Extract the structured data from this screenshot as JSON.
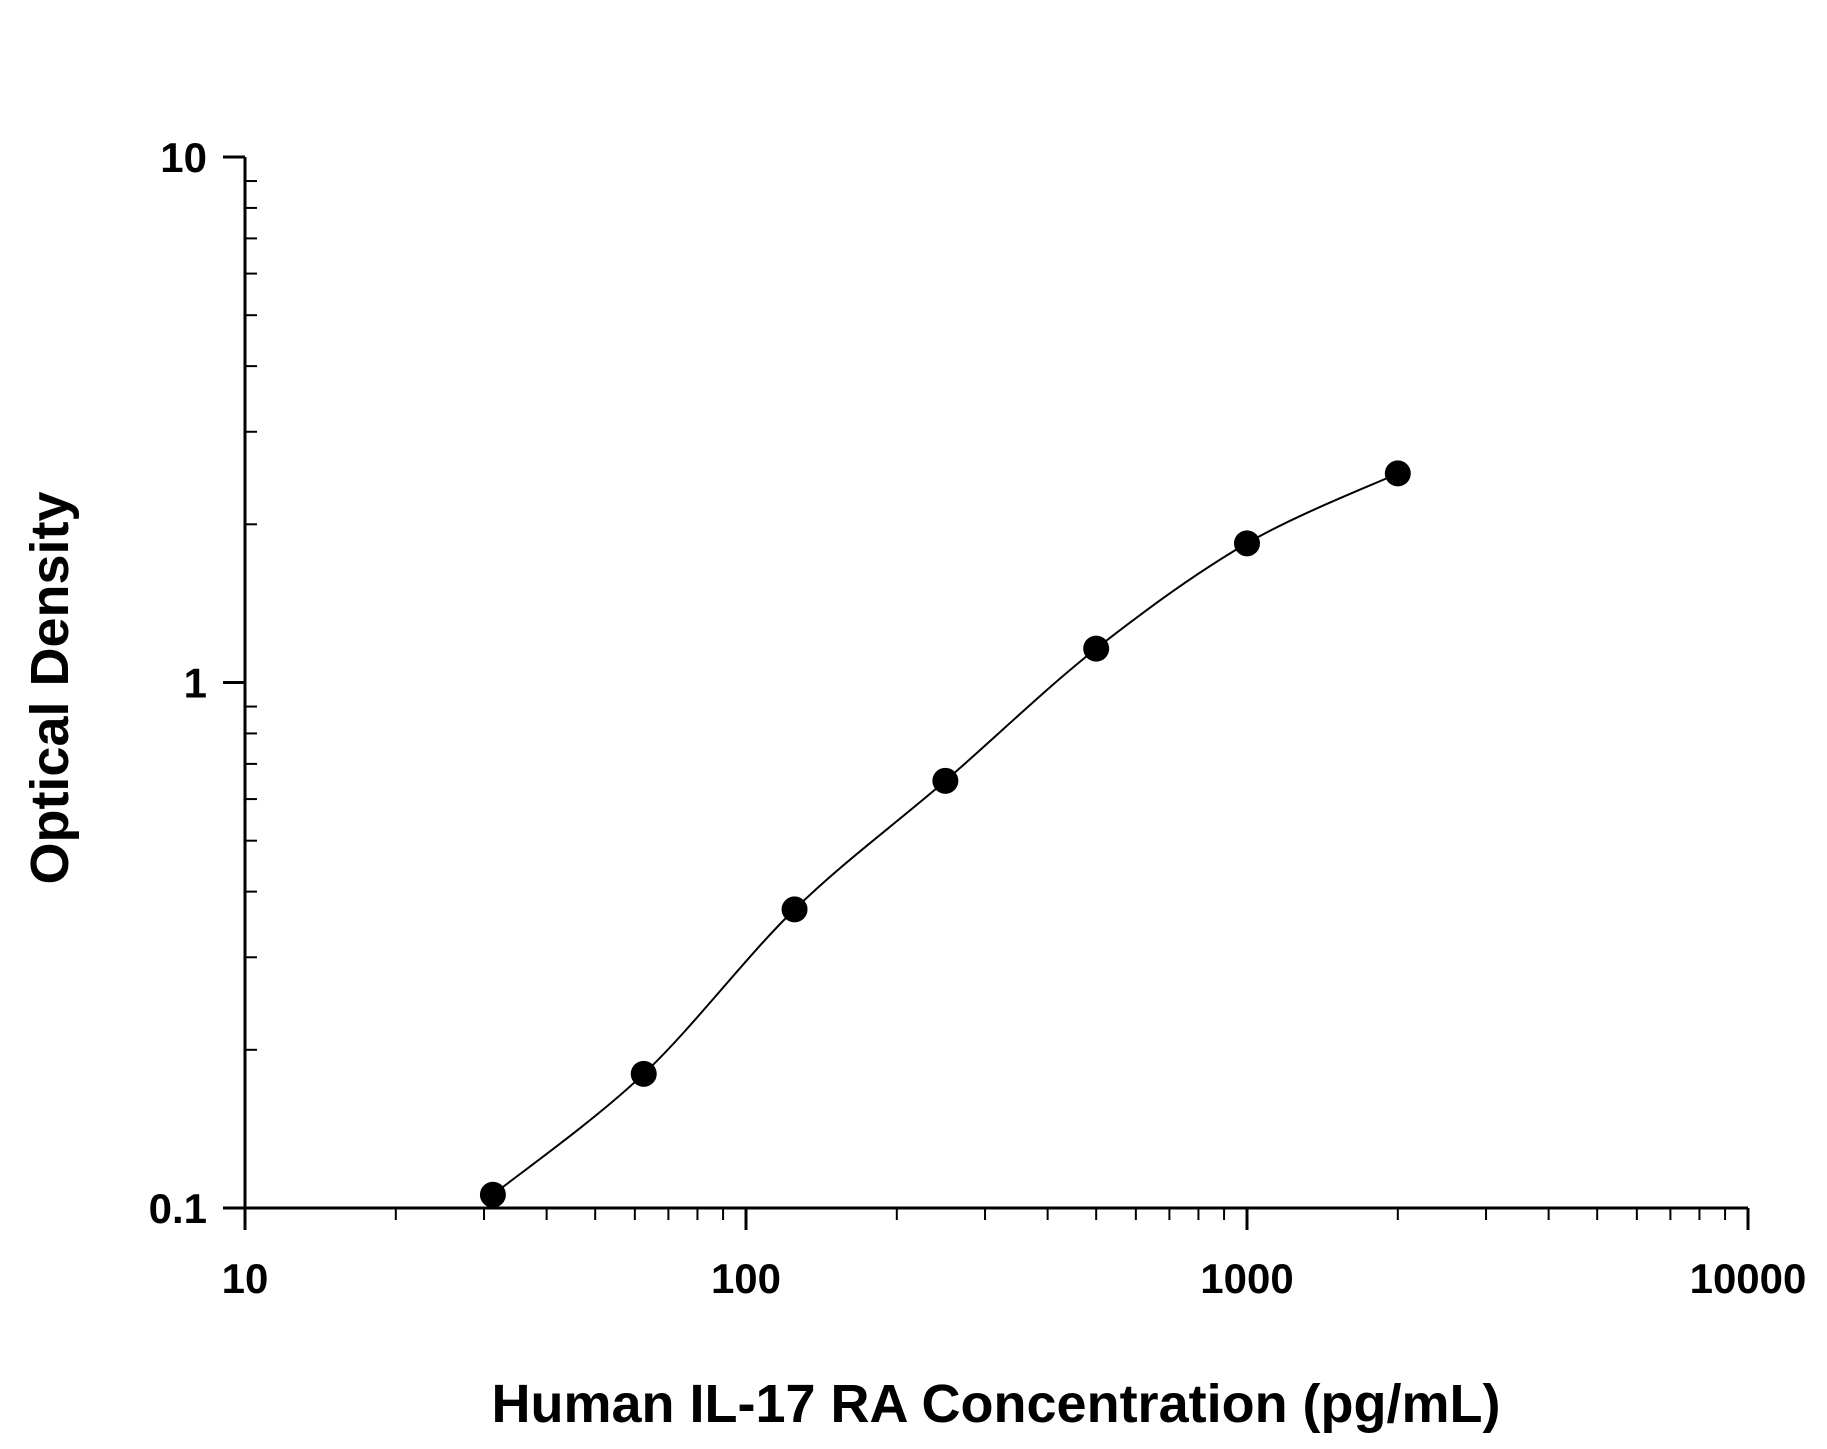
{
  "chart_data": {
    "type": "scatter",
    "title": "",
    "xlabel": "Human IL-17 RA Concentration (pg/mL)",
    "ylabel": "Optical Density",
    "xscale": "log",
    "yscale": "log",
    "xlim": [
      10,
      10000
    ],
    "ylim": [
      0.1,
      10
    ],
    "x_tick_labels": [
      "10",
      "100",
      "1000",
      "10000"
    ],
    "y_tick_labels": [
      "0.1",
      "1",
      "10"
    ],
    "grid": false,
    "legend": "none",
    "series": [
      {
        "x": [
          31.25,
          62.5,
          125,
          250,
          500,
          1000,
          2000
        ],
        "y": [
          0.106,
          0.18,
          0.37,
          0.65,
          1.16,
          1.84,
          2.5
        ],
        "markers": "filled-circle",
        "fit_curve": true
      }
    ],
    "colors": {
      "marker": "#000000",
      "line": "#000000",
      "axis": "#000000"
    }
  }
}
